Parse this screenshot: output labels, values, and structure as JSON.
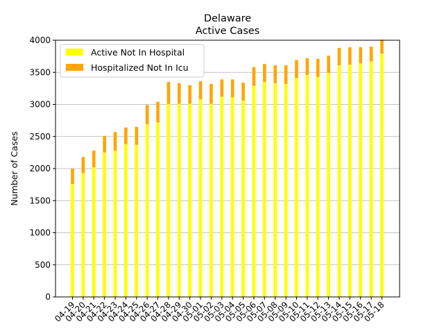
{
  "chart_data": {
    "type": "bar",
    "stacked": true,
    "title": "Delaware",
    "subtitle": "Active Cases",
    "xlabel": "",
    "ylabel": "Number of Cases",
    "ylim": [
      0,
      4000
    ],
    "yticks": [
      0,
      500,
      1000,
      1500,
      2000,
      2500,
      3000,
      3500,
      4000
    ],
    "grid": "horizontal",
    "legend_position": "top-left",
    "categories": [
      "04-19",
      "04-20",
      "04-21",
      "04-22",
      "04-23",
      "04-24",
      "04-25",
      "04-26",
      "04-27",
      "04-28",
      "04-29",
      "04-30",
      "05-01",
      "05-02",
      "05-03",
      "05-04",
      "05-05",
      "05-06",
      "05-07",
      "05-08",
      "05-09",
      "05-10",
      "05-11",
      "05-12",
      "05-13",
      "05-14",
      "05-15",
      "05-16",
      "05-17",
      "05-18"
    ],
    "series": [
      {
        "name": "Active Not In Hospital",
        "color": "#ffff00",
        "values": [
          1760,
          1930,
          2020,
          2250,
          2280,
          2380,
          2370,
          2690,
          2720,
          3010,
          3010,
          3010,
          3080,
          3010,
          3120,
          3110,
          3060,
          3290,
          3350,
          3330,
          3320,
          3410,
          3460,
          3430,
          3490,
          3610,
          3620,
          3640,
          3670,
          3790
        ]
      },
      {
        "name": "Hospitalized Not In Icu",
        "color": "#ffa500",
        "values": [
          240,
          250,
          260,
          260,
          290,
          260,
          280,
          300,
          320,
          340,
          320,
          290,
          280,
          310,
          270,
          280,
          280,
          290,
          280,
          280,
          290,
          280,
          260,
          280,
          270,
          270,
          270,
          250,
          230,
          220
        ]
      }
    ]
  }
}
